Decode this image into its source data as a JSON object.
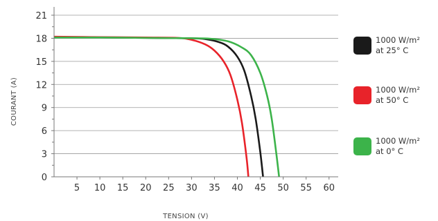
{
  "chart_data": {
    "type": "line",
    "xlabel": "TENSION (V)",
    "ylabel": "COURANT (A)",
    "xlim": [
      0,
      62
    ],
    "ylim": [
      0,
      21
    ],
    "xticks": [
      5,
      10,
      15,
      20,
      25,
      30,
      35,
      40,
      45,
      50,
      55,
      60
    ],
    "yticks": [
      0,
      3,
      6,
      9,
      12,
      15,
      18,
      21
    ],
    "grid": "horizontal",
    "legend_position": "right",
    "series": [
      {
        "name": "1000 W/m² at 25° C",
        "legend_line1": "1000 W/m²",
        "legend_line2": "at 25° C",
        "color": "#1a1a1a",
        "x": [
          0,
          10,
          20,
          30,
          33,
          36,
          38,
          40,
          41.5,
          43,
          44,
          45,
          45.6
        ],
        "y": [
          18.1,
          18.1,
          18.05,
          18.0,
          17.9,
          17.5,
          16.9,
          15.6,
          13.8,
          10.5,
          7.5,
          3.2,
          0
        ]
      },
      {
        "name": "1000 W/m² at 50° C",
        "legend_line1": "1000 W/m²",
        "legend_line2": "at 50° C",
        "color": "#e8232a",
        "x": [
          0,
          10,
          20,
          27,
          30,
          33,
          35,
          37,
          38.5,
          40,
          41,
          42,
          42.4
        ],
        "y": [
          18.2,
          18.15,
          18.1,
          18.05,
          17.8,
          17.2,
          16.4,
          15.0,
          13.2,
          10.0,
          7.0,
          2.5,
          0
        ]
      },
      {
        "name": "1000 W/m² at 0° C",
        "legend_line1": "1000 W/m²",
        "legend_line2": "at 0° C",
        "color": "#3cb34a",
        "x": [
          0,
          10,
          20,
          30,
          34,
          38,
          41,
          43,
          45,
          46.5,
          47.5,
          48.5,
          49.1
        ],
        "y": [
          18.1,
          18.1,
          18.05,
          18.0,
          17.95,
          17.6,
          16.8,
          15.8,
          13.5,
          10.5,
          7.5,
          3.0,
          0
        ]
      }
    ]
  }
}
